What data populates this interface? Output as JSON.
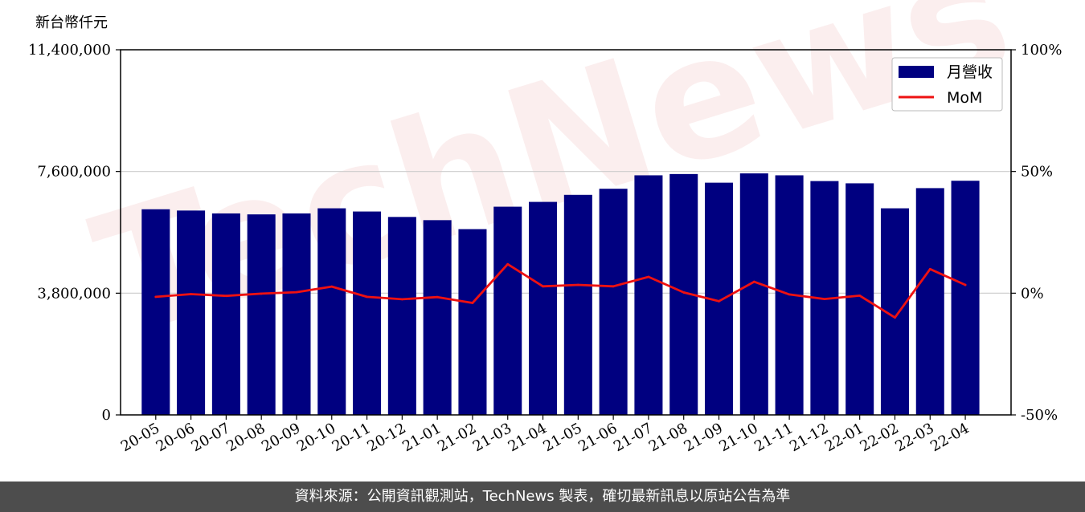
{
  "chart_data": {
    "type": "bar",
    "unit_label": "新台幣仟元",
    "categories": [
      "20-05",
      "20-06",
      "20-07",
      "20-08",
      "20-09",
      "20-10",
      "20-11",
      "20-12",
      "21-01",
      "21-02",
      "21-03",
      "21-04",
      "21-05",
      "21-06",
      "21-07",
      "21-08",
      "21-09",
      "21-10",
      "21-11",
      "21-12",
      "22-01",
      "22-02",
      "22-03",
      "22-04"
    ],
    "series": [
      {
        "name": "月營收",
        "type": "bar",
        "axis": "left",
        "color": "#000080",
        "values": [
          6420000,
          6380000,
          6290000,
          6260000,
          6290000,
          6450000,
          6350000,
          6180000,
          6080000,
          5800000,
          6500000,
          6650000,
          6870000,
          7060000,
          7480000,
          7520000,
          7250000,
          7540000,
          7480000,
          7300000,
          7230000,
          6450000,
          7080000,
          7310000
        ]
      },
      {
        "name": "MoM",
        "type": "line",
        "axis": "right",
        "color": "#ee1111",
        "values": [
          -1.5,
          -0.4,
          -1.1,
          -0.2,
          0.4,
          2.7,
          -1.5,
          -2.5,
          -1.6,
          -4.0,
          11.9,
          2.8,
          3.4,
          2.8,
          6.7,
          0.3,
          -3.3,
          4.7,
          -0.5,
          -2.4,
          -1.0,
          -10.0,
          9.9,
          3.4
        ]
      }
    ],
    "y_left": {
      "ylim": [
        0,
        11400000
      ],
      "ticks": [
        0,
        3800000,
        7600000,
        11400000
      ],
      "tick_labels": [
        "0",
        "3,800,000",
        "7,600,000",
        "11,400,000"
      ]
    },
    "y_right": {
      "ylim": [
        -50,
        100
      ],
      "ticks": [
        -50,
        0,
        50,
        100
      ],
      "tick_labels": [
        "-50%",
        "0%",
        "50%",
        "100%"
      ]
    },
    "grid": "horizontal",
    "legend_position": "top-right"
  },
  "watermark": "TechNews",
  "footer": "資料來源：公開資訊觀測站，TechNews 製表，確切最新訊息以原站公告為準"
}
